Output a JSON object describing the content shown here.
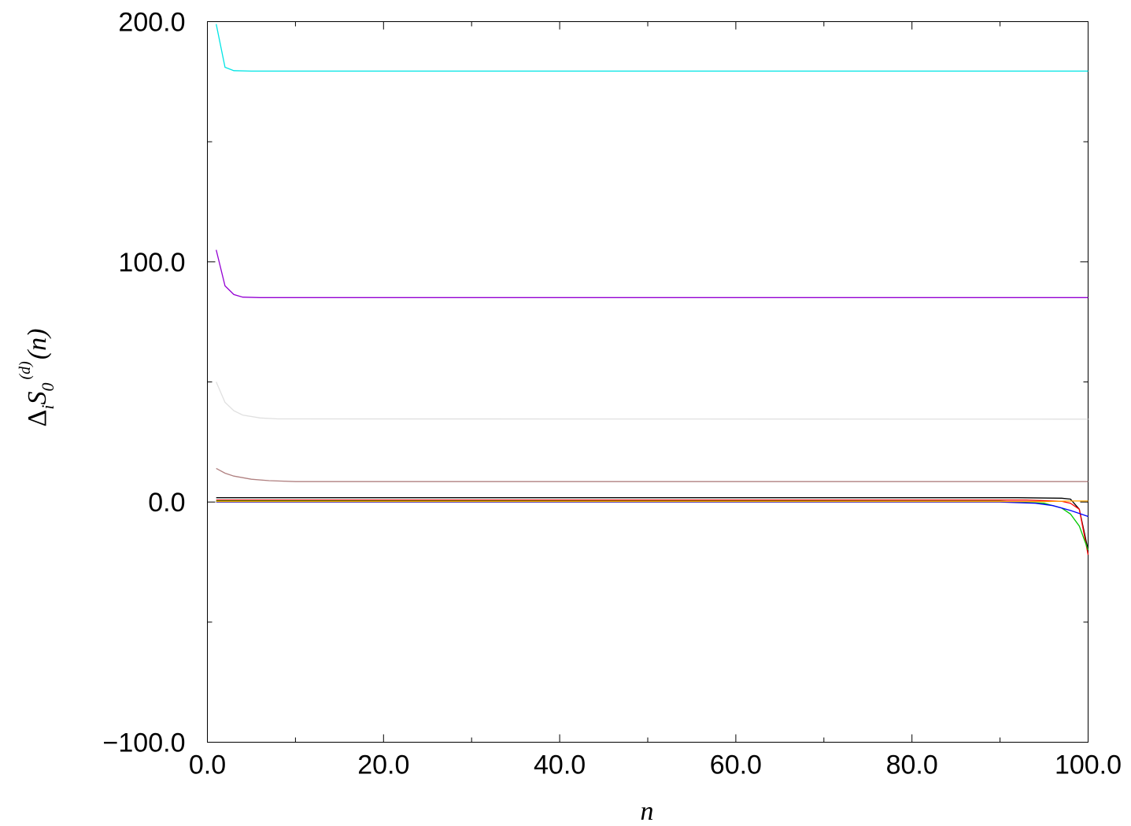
{
  "chart_data": {
    "type": "line",
    "title": "",
    "xlabel": "n",
    "ylabel": {
      "delta": "Δ",
      "sub_i": "i",
      "s": "S",
      "sub_0": "0",
      "sup_d": "(d)",
      "arg": "(n)"
    },
    "xlim": [
      0,
      100
    ],
    "ylim": [
      -100,
      200
    ],
    "x_ticks": [
      0,
      20,
      40,
      60,
      80,
      100
    ],
    "x_tick_labels": [
      "0.0",
      "20.0",
      "40.0",
      "60.0",
      "80.0",
      "100.0"
    ],
    "y_ticks": [
      -100,
      0,
      100,
      200
    ],
    "y_tick_labels": [
      "−100.0",
      "0.0",
      "100.0",
      "200.0"
    ],
    "x_minor_ticks": [
      10,
      30,
      50,
      70,
      90
    ],
    "y_minor_ticks": [
      -50,
      50,
      150
    ],
    "grid": false,
    "legend": "none",
    "series": [
      {
        "color": "#00e5e5",
        "points": [
          [
            1,
            199
          ],
          [
            2,
            181
          ],
          [
            3,
            179.6
          ],
          [
            5,
            179.4
          ],
          [
            100,
            179.4
          ]
        ]
      },
      {
        "color": "#9400d3",
        "points": [
          [
            1,
            105
          ],
          [
            2,
            90
          ],
          [
            3,
            86.4
          ],
          [
            4,
            85.3
          ],
          [
            6,
            85.1
          ],
          [
            100,
            85.1
          ]
        ]
      },
      {
        "color": "#e0e0e0",
        "points": [
          [
            1,
            50
          ],
          [
            2,
            41.5
          ],
          [
            3,
            38
          ],
          [
            4,
            36.2
          ],
          [
            6,
            35
          ],
          [
            8,
            34.6
          ],
          [
            100,
            34.5
          ]
        ]
      },
      {
        "color": "#b08080",
        "points": [
          [
            1,
            14
          ],
          [
            2,
            12
          ],
          [
            3,
            10.8
          ],
          [
            5,
            9.5
          ],
          [
            7,
            8.9
          ],
          [
            10,
            8.5
          ],
          [
            100,
            8.5
          ]
        ]
      },
      {
        "color": "#000000",
        "points": [
          [
            1,
            1.8
          ],
          [
            92,
            1.8
          ],
          [
            97,
            1.6
          ],
          [
            98,
            1.2
          ],
          [
            99,
            -3
          ],
          [
            100,
            -20
          ]
        ]
      },
      {
        "color": "#ff0000",
        "points": [
          [
            1,
            0.8
          ],
          [
            93,
            0.8
          ],
          [
            97,
            0.3
          ],
          [
            98,
            -0.5
          ],
          [
            99,
            -3
          ],
          [
            100,
            -22
          ]
        ]
      },
      {
        "color": "#00c800",
        "points": [
          [
            1,
            0.4
          ],
          [
            90,
            0.3
          ],
          [
            95,
            -0.5
          ],
          [
            97,
            -2.5
          ],
          [
            98,
            -5
          ],
          [
            99,
            -10
          ],
          [
            100,
            -20
          ]
        ]
      },
      {
        "color": "#0000ff",
        "points": [
          [
            1,
            0.0
          ],
          [
            90,
            0.0
          ],
          [
            94,
            -0.5
          ],
          [
            96,
            -1.5
          ],
          [
            98,
            -3.5
          ],
          [
            100,
            -6
          ]
        ]
      },
      {
        "color": "#ffa500",
        "points": [
          [
            1,
            0.2
          ],
          [
            95,
            0.2
          ],
          [
            98,
            0.4
          ],
          [
            100,
            0.4
          ]
        ]
      }
    ]
  }
}
